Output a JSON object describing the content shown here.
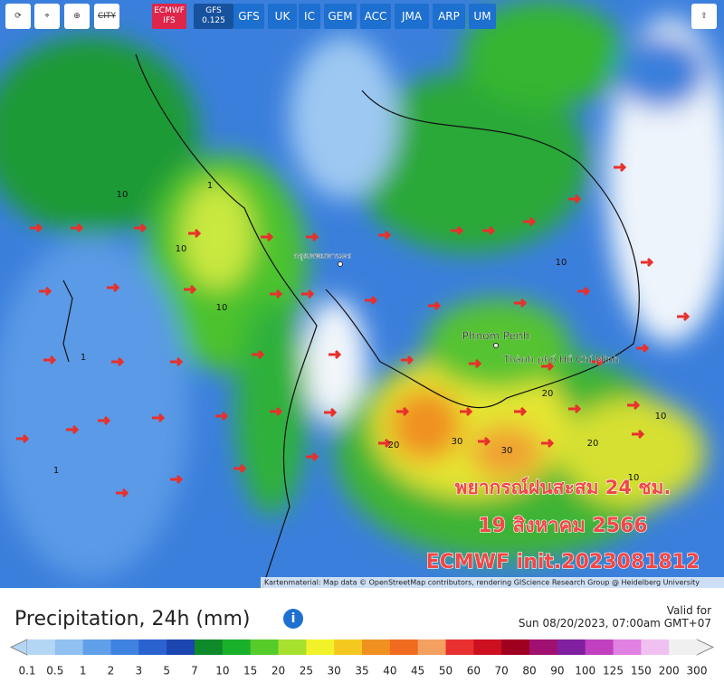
{
  "toolbar": {
    "city": "CITY",
    "models": [
      "ECMWF IFS",
      "GFS 0.125",
      "GFS",
      "UK",
      "IC",
      "GEM",
      "ACC",
      "JMA",
      "ARP",
      "UM"
    ]
  },
  "map": {
    "places": [
      "กรุงเทพมหานคร",
      "Phnom Penh",
      "Thành phố Hồ Chí Minh"
    ],
    "contour_labels": [
      "10",
      "10",
      "10",
      "10",
      "10",
      "1",
      "1",
      "1",
      "20",
      "20",
      "30",
      "30",
      "20",
      "10"
    ],
    "overlay": [
      "พยากรณ์ฝนสะสม 24 ชม.",
      "19 สิงหาคม 2566",
      "ECMWF init.2023081812"
    ],
    "attribution": "Kartenmaterial: Map data © OpenStreetMap contributors, rendering GIScience Research Group @ Heidelberg University"
  },
  "footer": {
    "title": "Precipitation, 24h (mm)",
    "valid_label": "Valid for",
    "valid_time": "Sun 08/20/2023, 07:00am GMT+07"
  },
  "legend": {
    "labels": [
      "0.1",
      "0.5",
      "1",
      "2",
      "3",
      "5",
      "7",
      "10",
      "15",
      "20",
      "25",
      "30",
      "35",
      "40",
      "45",
      "50",
      "60",
      "70",
      "80",
      "90",
      "100",
      "125",
      "150",
      "200",
      "300"
    ],
    "colors": [
      "#b4d6f5",
      "#8fc0f0",
      "#5fa0e8",
      "#3f82e0",
      "#2a63d0",
      "#1b46b0",
      "#0e8a2a",
      "#19b02c",
      "#55cc2a",
      "#a8e030",
      "#f2f22a",
      "#f5c820",
      "#f09020",
      "#f06a20",
      "#f3a060",
      "#e83030",
      "#cc1020",
      "#a00020",
      "#a01070",
      "#8020a0",
      "#c040c0",
      "#e080e0",
      "#f0c0f0",
      "#f0f0f0"
    ]
  }
}
